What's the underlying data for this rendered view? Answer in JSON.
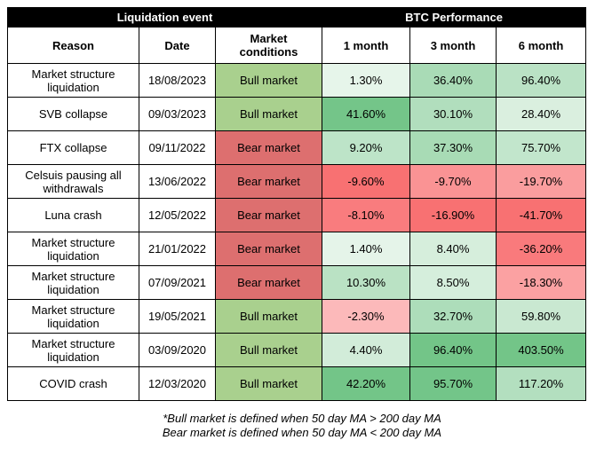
{
  "header": {
    "group_event": "Liquidation event",
    "group_perf": "BTC Performance",
    "columns": [
      "Reason",
      "Date",
      "Market conditions",
      "1 month",
      "3 month",
      "6 month"
    ]
  },
  "rows": [
    {
      "reason": "Market structure liquidation",
      "date": "18/08/2023",
      "condition": "Bull market",
      "m1": "1.30%",
      "m3": "36.40%",
      "m6": "96.40%"
    },
    {
      "reason": "SVB collapse",
      "date": "09/03/2023",
      "condition": "Bull market",
      "m1": "41.60%",
      "m3": "30.10%",
      "m6": "28.40%"
    },
    {
      "reason": "FTX collapse",
      "date": "09/11/2022",
      "condition": "Bear market",
      "m1": "9.20%",
      "m3": "37.30%",
      "m6": "75.70%"
    },
    {
      "reason": "Celsuis pausing all withdrawals",
      "date": "13/06/2022",
      "condition": "Bear market",
      "m1": "-9.60%",
      "m3": "-9.70%",
      "m6": "-19.70%"
    },
    {
      "reason": "Luna crash",
      "date": "12/05/2022",
      "condition": "Bear market",
      "m1": "-8.10%",
      "m3": "-16.90%",
      "m6": "-41.70%"
    },
    {
      "reason": "Market structure liquidation",
      "date": "21/01/2022",
      "condition": "Bear market",
      "m1": "1.40%",
      "m3": "8.40%",
      "m6": "-36.20%"
    },
    {
      "reason": "Market structure liquidation",
      "date": "07/09/2021",
      "condition": "Bear market",
      "m1": "10.30%",
      "m3": "8.50%",
      "m6": "-18.30%"
    },
    {
      "reason": "Market structure liquidation",
      "date": "19/05/2021",
      "condition": "Bull market",
      "m1": "-2.30%",
      "m3": "32.70%",
      "m6": "59.80%"
    },
    {
      "reason": "Market structure liquidation",
      "date": "03/09/2020",
      "condition": "Bull market",
      "m1": "4.40%",
      "m3": "96.40%",
      "m6": "403.50%"
    },
    {
      "reason": "COVID crash",
      "date": "12/03/2020",
      "condition": "Bull market",
      "m1": "42.20%",
      "m3": "95.70%",
      "m6": "117.20%"
    }
  ],
  "colors": {
    "bull": "#a9d08e",
    "bear": "#dd6f6f",
    "positive_max": "#63be7b",
    "negative_max": "#f8696b",
    "neutral": "#ffffff"
  },
  "footnotes": [
    "*Bull market is defined when 50 day MA > 200 day MA",
    "Bear market is defined when 50 day MA < 200 day MA"
  ]
}
